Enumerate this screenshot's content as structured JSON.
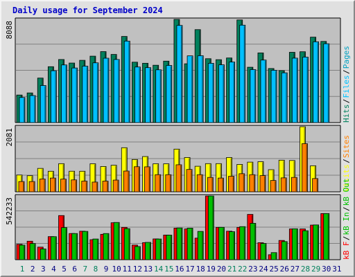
{
  "title": "Daily usage for September 2024",
  "colors": {
    "hits": "#00805c",
    "files": "#00c0ff",
    "pages": "#00a0c0",
    "sites": "#ff8000",
    "visits": "#ffff00",
    "kb_f": "#ff0000",
    "kb_in": "#00c000",
    "kb_out": "#00c000",
    "day_label_weekday": "#000080",
    "day_label_weekend": "#00805c",
    "panel_bg": "#c0c0c0",
    "frame_bg": "#e0e0e0"
  },
  "chart_data": [
    {
      "type": "bar",
      "panel": "hits-files-pages",
      "categories": [
        "1",
        "2",
        "3",
        "4",
        "5",
        "6",
        "7",
        "8",
        "9",
        "10",
        "11",
        "12",
        "13",
        "14",
        "15",
        "16",
        "17",
        "18",
        "19",
        "20",
        "21",
        "22",
        "23",
        "24",
        "25",
        "26",
        "27",
        "28",
        "29",
        "30",
        "31"
      ],
      "y_tick_label": "8088",
      "ylim": [
        0,
        8088
      ],
      "legend": [
        {
          "key": "hits",
          "label": "Hits"
        },
        {
          "key": "files",
          "label": "Files"
        },
        {
          "key": "pages",
          "label": "Pages"
        }
      ],
      "legend_separator": "/",
      "series": [
        {
          "name": "Hits",
          "values": [
            2160,
            2324,
            3489,
            4380,
            4944,
            4666,
            4880,
            5206,
            5563,
            5341,
            6751,
            4734,
            4650,
            4495,
            4816,
            8088,
            4609,
            7286,
            5007,
            4930,
            5064,
            8045,
            4338,
            5461,
            4238,
            4071,
            5509,
            5553,
            6695,
            6362,
            0
          ]
        },
        {
          "name": "Files",
          "values": [
            1967,
            2118,
            2905,
            4064,
            4518,
            4279,
            4423,
            4683,
            5046,
            4945,
            6387,
            4356,
            4306,
            4137,
            4477,
            7616,
            5230,
            5241,
            4647,
            4529,
            4747,
            7637,
            4153,
            4901,
            4101,
            3900,
            5051,
            5132,
            6334,
            6180,
            0
          ]
        }
      ],
      "secondary": {
        "name": "Pages",
        "values": []
      }
    },
    {
      "type": "bar",
      "panel": "visits-sites",
      "categories": [
        "1",
        "2",
        "3",
        "4",
        "5",
        "6",
        "7",
        "8",
        "9",
        "10",
        "11",
        "12",
        "13",
        "14",
        "15",
        "16",
        "17",
        "18",
        "19",
        "20",
        "21",
        "22",
        "23",
        "24",
        "25",
        "26",
        "27",
        "28",
        "29",
        "30",
        "31"
      ],
      "y_tick_label": "2081",
      "ylim": [
        0,
        2081
      ],
      "legend": [
        {
          "key": "visits",
          "label": "Visits"
        },
        {
          "key": "sites",
          "label": "Sites"
        }
      ],
      "legend_separator": "/",
      "series": [
        {
          "name": "Visits",
          "values": [
            537,
            515,
            749,
            658,
            900,
            659,
            658,
            897,
            810,
            849,
            1410,
            1033,
            1128,
            897,
            896,
            1365,
            1097,
            817,
            901,
            901,
            1097,
            876,
            949,
            964,
            708,
            1011,
            1001,
            2081,
            833,
            0,
            0
          ]
        },
        {
          "name": "Sites",
          "values": [
            329,
            329,
            410,
            440,
            407,
            381,
            342,
            311,
            342,
            375,
            664,
            802,
            799,
            548,
            548,
            865,
            715,
            548,
            461,
            440,
            497,
            579,
            548,
            519,
            362,
            446,
            461,
            1539,
            424,
            0,
            0
          ]
        }
      ]
    },
    {
      "type": "bar",
      "panel": "kbytes",
      "categories": [
        "1",
        "2",
        "3",
        "4",
        "5",
        "6",
        "7",
        "8",
        "9",
        "10",
        "11",
        "12",
        "13",
        "14",
        "15",
        "16",
        "17",
        "18",
        "19",
        "20",
        "21",
        "22",
        "23",
        "24",
        "25",
        "26",
        "27",
        "28",
        "29",
        "30",
        "31"
      ],
      "y_tick_label": "542233",
      "ylim": [
        0,
        542233
      ],
      "legend": [
        {
          "key": "kb_f",
          "label": "kB F"
        },
        {
          "key": "kb_in",
          "label": "kB In"
        },
        {
          "key": "kb_out",
          "label": "kB Out"
        }
      ],
      "legend_separator": "/",
      "series": [
        {
          "name": "kB F",
          "values": [
            131160,
            157456,
            107184,
            196392,
            375712,
            222788,
            242448,
            170380,
            216168,
            314440,
            275120,
            124600,
            145312,
            176924,
            209732,
            268528,
            261792,
            183544,
            542233,
            275116,
            242444,
            275116,
            385544,
            144696,
            42184,
            163912,
            261792,
            261792,
            294460,
            392664,
            0
          ]
        },
        {
          "name": "kB In",
          "values": [
            124184,
            137440,
            91280,
            196056,
            273272,
            222700,
            240908,
            176140,
            222692,
            317016,
            264300,
            112208,
            147428,
            176136,
            209168,
            270100,
            268396,
            240880,
            542233,
            275392,
            238452,
            281448,
            309652,
            138120,
            60276,
            154332,
            263048,
            246480,
            295808,
            392800,
            0
          ]
        }
      ]
    }
  ]
}
